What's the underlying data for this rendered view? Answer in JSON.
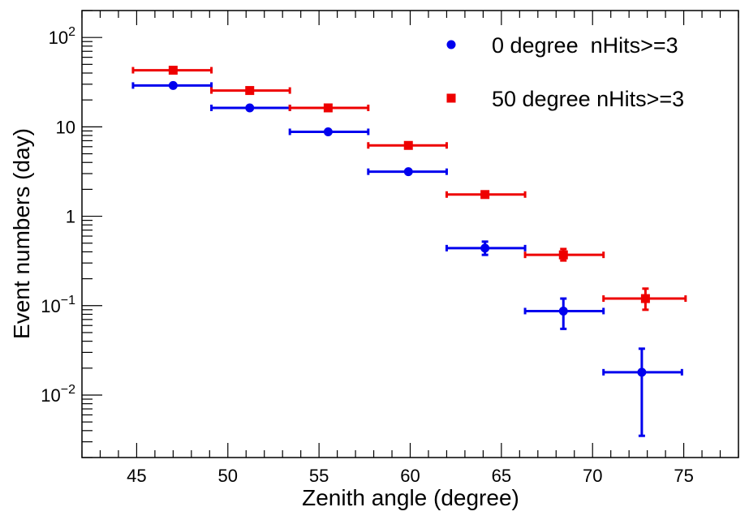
{
  "chart_data": {
    "type": "scatter",
    "xlabel": "Zenith angle (degree)",
    "ylabel": "Event numbers (day)",
    "xlim": [
      42,
      78
    ],
    "ylim": [
      0.002,
      200
    ],
    "yscale": "log",
    "grid": false,
    "legend_position": "top-right",
    "x_ticks": [
      {
        "value": 45,
        "label": "45"
      },
      {
        "value": 50,
        "label": "50"
      },
      {
        "value": 55,
        "label": "55"
      },
      {
        "value": 60,
        "label": "60"
      },
      {
        "value": 65,
        "label": "65"
      },
      {
        "value": 70,
        "label": "70"
      },
      {
        "value": 75,
        "label": "75"
      }
    ],
    "y_ticks": [
      {
        "value": 100,
        "base": "10",
        "exp": "2",
        "text": ""
      },
      {
        "value": 10,
        "base": "",
        "exp": "",
        "text": "10"
      },
      {
        "value": 1,
        "base": "",
        "exp": "",
        "text": "1"
      },
      {
        "value": 0.1,
        "base": "10",
        "exp": "−1",
        "text": ""
      },
      {
        "value": 0.01,
        "base": "10",
        "exp": "−2",
        "text": ""
      }
    ],
    "series": [
      {
        "name": "0 degree  nHits>=3",
        "color": "#0000ee",
        "marker": "circle",
        "points": [
          {
            "x": 47.0,
            "xerr": [
              44.8,
              49.1
            ],
            "y": 29.0,
            "yerr": [
              29.0,
              29.0
            ]
          },
          {
            "x": 51.2,
            "xerr": [
              49.1,
              53.4
            ],
            "y": 16.3,
            "yerr": [
              16.3,
              16.3
            ]
          },
          {
            "x": 55.5,
            "xerr": [
              53.4,
              57.7
            ],
            "y": 8.8,
            "yerr": [
              8.8,
              8.8
            ]
          },
          {
            "x": 59.9,
            "xerr": [
              57.7,
              62.0
            ],
            "y": 3.15,
            "yerr": [
              3.15,
              3.15
            ]
          },
          {
            "x": 64.1,
            "xerr": [
              62.0,
              66.3
            ],
            "y": 0.44,
            "yerr": [
              0.37,
              0.52
            ]
          },
          {
            "x": 68.4,
            "xerr": [
              66.3,
              70.6
            ],
            "y": 0.087,
            "yerr": [
              0.055,
              0.12
            ]
          },
          {
            "x": 72.7,
            "xerr": [
              70.6,
              74.9
            ],
            "y": 0.018,
            "yerr": [
              0.0035,
              0.033
            ]
          }
        ]
      },
      {
        "name": "50 degree nHits>=3",
        "color": "#ee0000",
        "marker": "square",
        "points": [
          {
            "x": 47.0,
            "xerr": [
              44.8,
              49.1
            ],
            "y": 43.0,
            "yerr": [
              43.0,
              43.0
            ]
          },
          {
            "x": 51.2,
            "xerr": [
              49.1,
              53.4
            ],
            "y": 25.5,
            "yerr": [
              25.5,
              25.5
            ]
          },
          {
            "x": 55.5,
            "xerr": [
              53.4,
              57.7
            ],
            "y": 16.3,
            "yerr": [
              16.3,
              16.3
            ]
          },
          {
            "x": 59.9,
            "xerr": [
              57.7,
              62.0
            ],
            "y": 6.2,
            "yerr": [
              6.2,
              6.2
            ]
          },
          {
            "x": 64.1,
            "xerr": [
              62.0,
              66.3
            ],
            "y": 1.75,
            "yerr": [
              1.75,
              1.75
            ]
          },
          {
            "x": 68.4,
            "xerr": [
              66.3,
              70.6
            ],
            "y": 0.37,
            "yerr": [
              0.32,
              0.43
            ]
          },
          {
            "x": 72.9,
            "xerr": [
              70.6,
              75.1
            ],
            "y": 0.12,
            "yerr": [
              0.09,
              0.155
            ]
          }
        ]
      }
    ]
  }
}
